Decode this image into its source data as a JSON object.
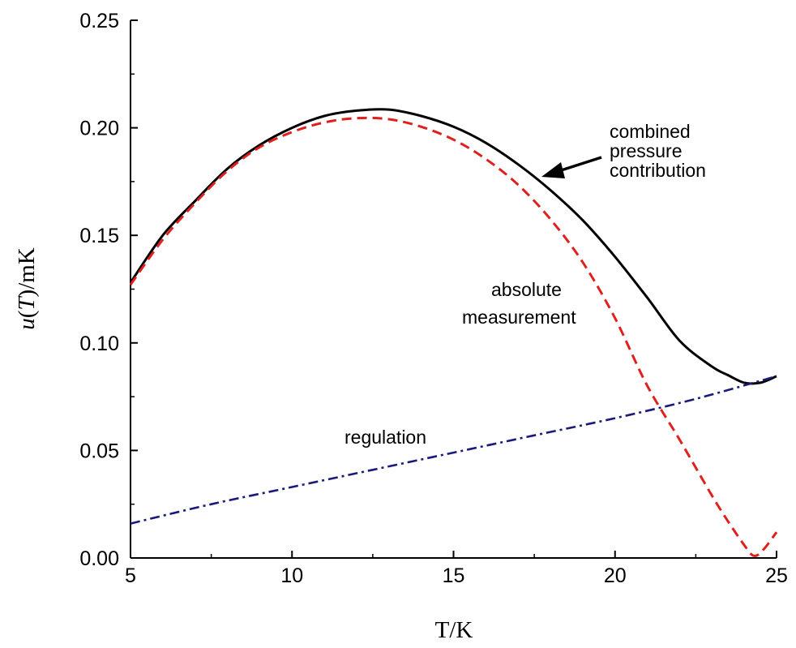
{
  "chart_data": {
    "type": "line",
    "xlabel": "T/K",
    "ylabel_italic": "u",
    "ylabel_paren_open": "(",
    "ylabel_italic_T": "T",
    "ylabel_rest": ")/mK",
    "xlim": [
      5,
      25
    ],
    "ylim": [
      0,
      0.25
    ],
    "x_major_ticks": [
      5,
      10,
      15,
      20,
      25
    ],
    "x_tick_labels": [
      "5",
      "10",
      "15",
      "20",
      "25"
    ],
    "x_minor_step": 2.5,
    "y_major_ticks": [
      0,
      0.05,
      0.1,
      0.15,
      0.2,
      0.25
    ],
    "y_tick_labels": [
      "0.00",
      "0.05",
      "0.10",
      "0.15",
      "0.20",
      "0.25"
    ],
    "y_minor_step": 0.025,
    "grid": false,
    "series": [
      {
        "key": "combined",
        "color": "#000000",
        "style": "solid",
        "x": [
          5,
          6,
          7,
          8,
          9,
          10,
          11,
          12,
          13,
          14,
          15,
          16,
          17,
          18,
          19,
          20,
          21,
          22,
          23,
          23.5,
          24,
          24.5,
          25
        ],
        "y": [
          0.128,
          0.15,
          0.166,
          0.181,
          0.192,
          0.2,
          0.2055,
          0.208,
          0.2085,
          0.2055,
          0.2005,
          0.193,
          0.183,
          0.171,
          0.157,
          0.14,
          0.121,
          0.101,
          0.089,
          0.085,
          0.0815,
          0.0815,
          0.0845
        ]
      },
      {
        "key": "absolute",
        "color": "#e0201c",
        "style": "dashed",
        "x": [
          5,
          6,
          7,
          8,
          9,
          10,
          11,
          12,
          13,
          14,
          15,
          16,
          17,
          18,
          19,
          20,
          21,
          22,
          23,
          23.5,
          24,
          24.3,
          24.6,
          25
        ],
        "y": [
          0.127,
          0.148,
          0.165,
          0.18,
          0.191,
          0.198,
          0.2025,
          0.2045,
          0.204,
          0.2005,
          0.1945,
          0.1855,
          0.1735,
          0.1575,
          0.1375,
          0.1115,
          0.08,
          0.055,
          0.029,
          0.017,
          0.006,
          0.001,
          0.004,
          0.012
        ]
      },
      {
        "key": "regulation",
        "color": "#1a1a7a",
        "style": "dashdot",
        "x": [
          5,
          7.5,
          10,
          12.5,
          15,
          17.5,
          20,
          22.5,
          25
        ],
        "y": [
          0.016,
          0.025,
          0.033,
          0.041,
          0.049,
          0.057,
          0.065,
          0.074,
          0.0845
        ]
      }
    ],
    "annotations": {
      "combined_lines": [
        "combined",
        "pressure",
        "contribution"
      ],
      "absolute_lines": [
        "absolute",
        "measurement"
      ],
      "regulation": "regulation"
    }
  }
}
